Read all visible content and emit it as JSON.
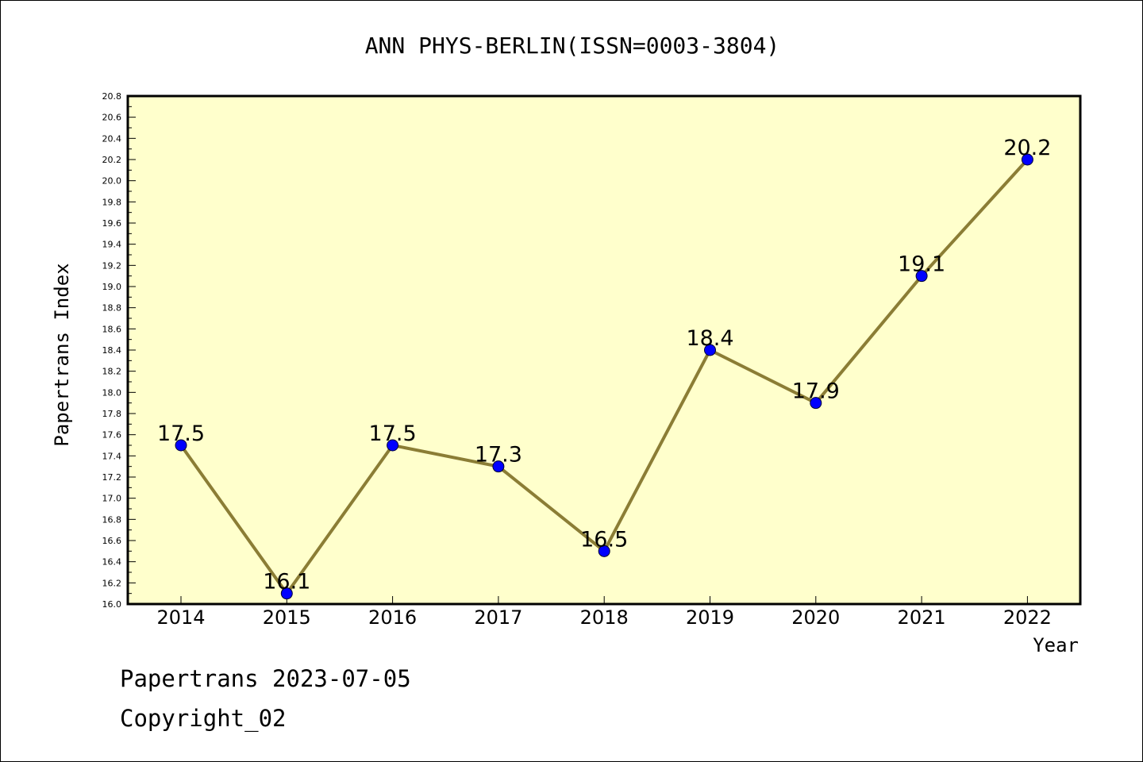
{
  "chart_data": {
    "type": "line",
    "title": "ANN PHYS-BERLIN(ISSN=0003-3804)",
    "xlabel": "Year",
    "ylabel": "Papertrans Index",
    "categories": [
      "2014",
      "2015",
      "2016",
      "2017",
      "2018",
      "2019",
      "2020",
      "2021",
      "2022"
    ],
    "series": [
      {
        "values": [
          17.5,
          16.1,
          17.5,
          17.3,
          16.5,
          18.4,
          17.9,
          19.1,
          20.2
        ],
        "labels": [
          "17.5",
          "16.1",
          "17.5",
          "17.3",
          "16.5",
          "18.4",
          "17.9",
          "19.1",
          "20.2"
        ]
      }
    ],
    "ylim": [
      16.0,
      20.8
    ],
    "yticks": [
      "16.0",
      "16.2",
      "16.4",
      "16.6",
      "16.8",
      "17.0",
      "17.2",
      "17.4",
      "17.6",
      "17.8",
      "18.0",
      "18.2",
      "18.4",
      "18.6",
      "18.8",
      "19.0",
      "19.2",
      "19.4",
      "19.6",
      "19.8",
      "20.0",
      "20.2",
      "20.4",
      "20.6",
      "20.8"
    ],
    "grid": false,
    "colors": {
      "plot_background": "#ffffcc",
      "line": "#8b7d35",
      "marker": "#0000ff"
    }
  },
  "footer": {
    "source": "Papertrans 2023-07-05",
    "copyright": "Copyright_02"
  }
}
